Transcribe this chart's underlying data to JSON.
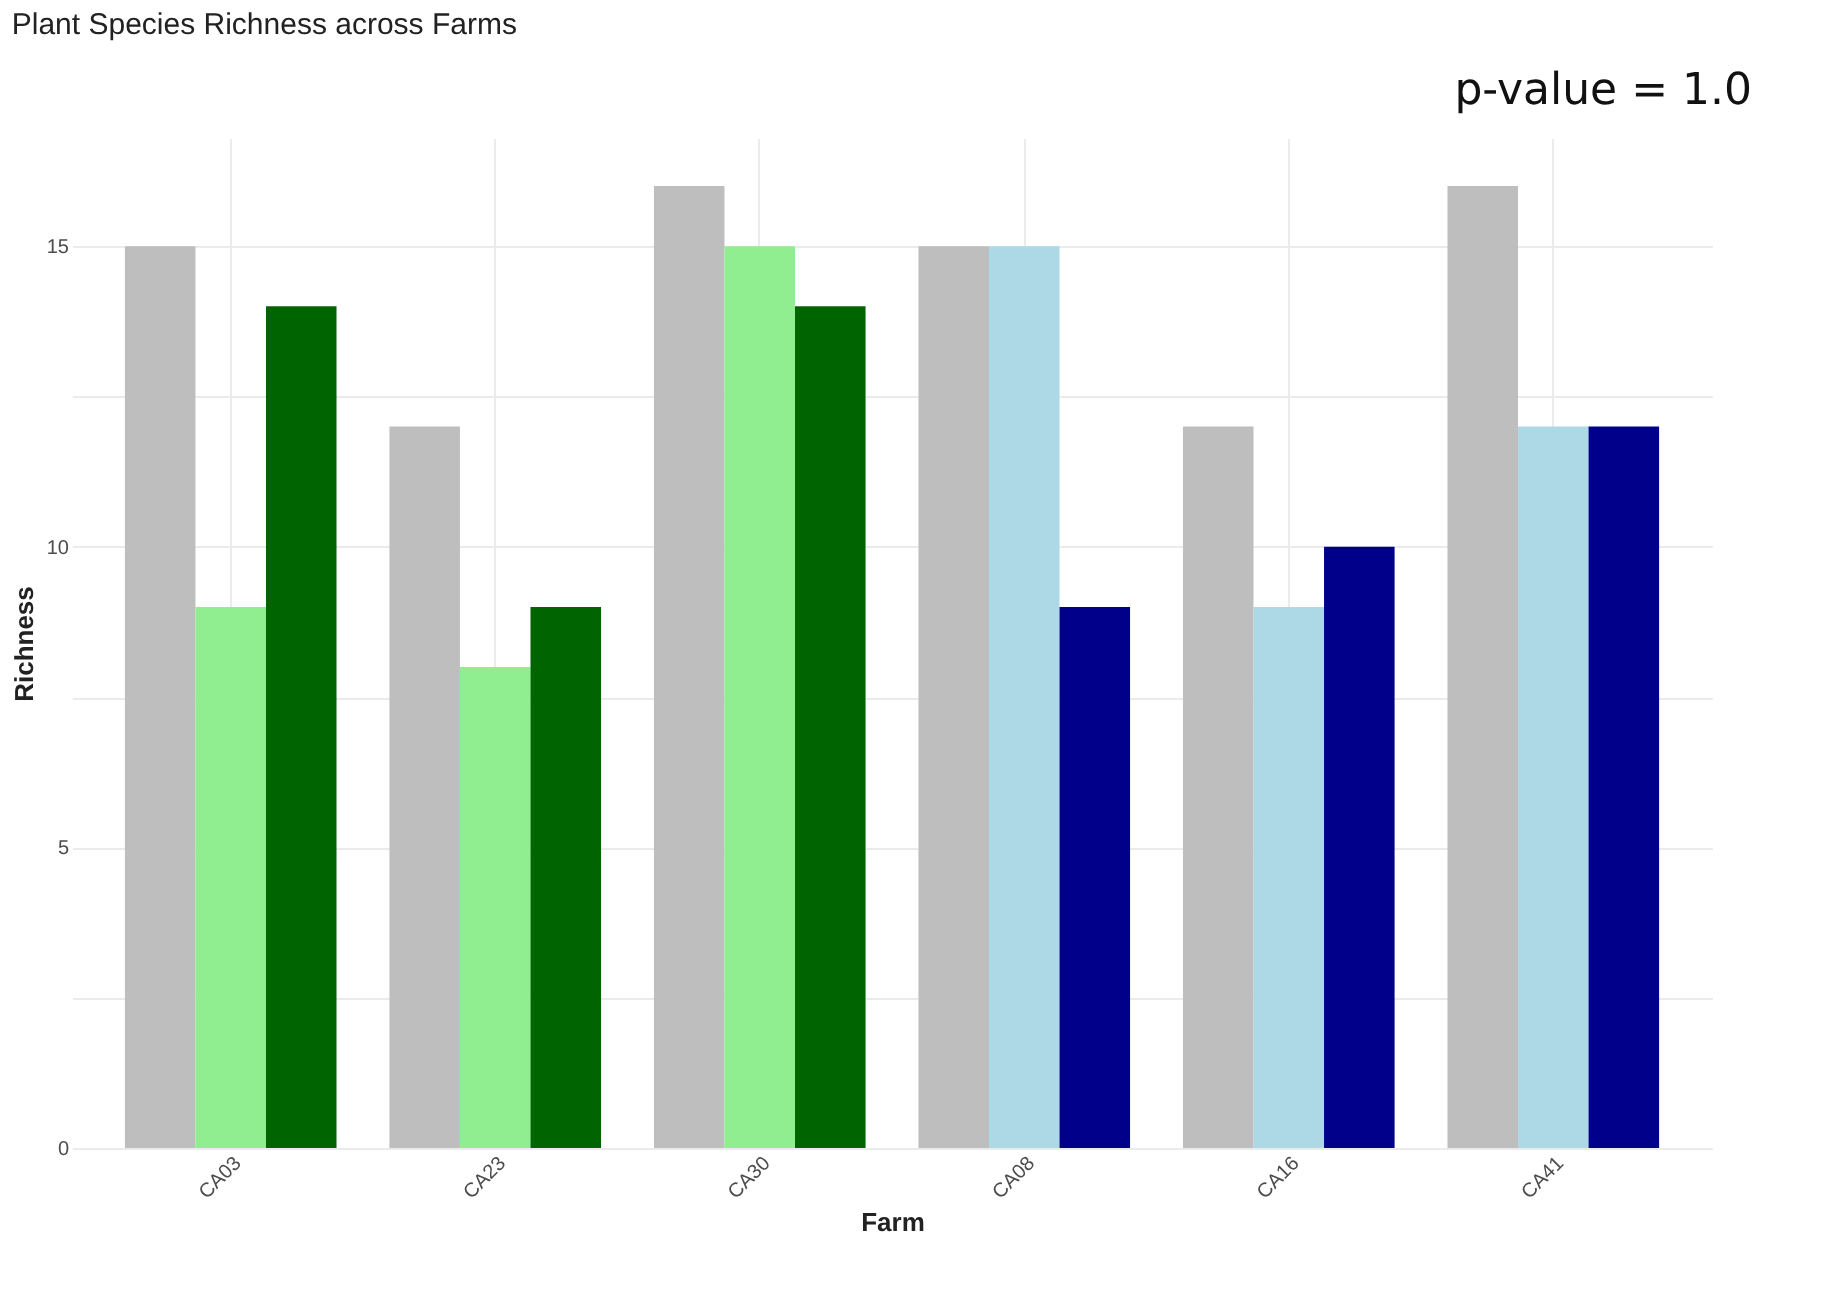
{
  "chart_data": {
    "type": "bar",
    "title": "Plant Species Richness across Farms",
    "xlabel": "Farm",
    "ylabel": "Richness",
    "annotations": [
      "p-value = 1.0"
    ],
    "categories": [
      "CA03",
      "CA23",
      "CA30",
      "CA08",
      "CA16",
      "CA41"
    ],
    "series": [
      {
        "color": "#bebebe",
        "values": [
          15,
          12,
          16,
          15,
          12,
          16
        ]
      },
      {
        "colors": [
          "#90ee90",
          "#90ee90",
          "#90ee90",
          "#add8e6",
          "#add8e6",
          "#add8e6"
        ],
        "values": [
          9,
          8,
          15,
          15,
          9,
          12
        ]
      },
      {
        "colors": [
          "#006400",
          "#006400",
          "#006400",
          "#00008b",
          "#00008b",
          "#00008b"
        ],
        "values": [
          14,
          9,
          14,
          9,
          10,
          12
        ]
      }
    ],
    "ylim": [
      0,
      16.8
    ],
    "yticks": [
      0,
      {
        "value": 2.5,
        "label": null
      },
      5,
      {
        "value": 7.5,
        "label": null
      },
      10,
      {
        "value": 12.5,
        "label": null
      },
      15
    ],
    "grid": true
  }
}
